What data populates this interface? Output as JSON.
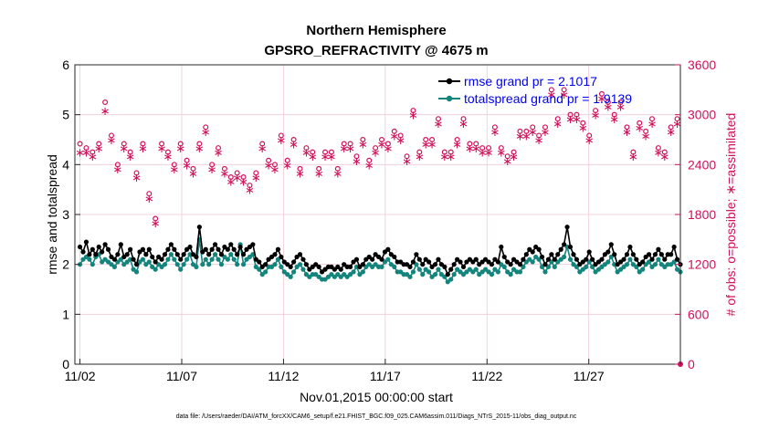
{
  "chart_data": {
    "type": "line",
    "title": "Northern Hemisphere",
    "subtitle": "GPSRO_REFRACTIVITY @ 4675 m",
    "xlabel": "Nov.01,2015 00:00:00 start",
    "ylabel": "rmse and totalspread",
    "ylabel_right": "# of obs: o=possible; ∗=assimilated",
    "x_tick_labels": [
      "11/02",
      "11/07",
      "11/12",
      "11/17",
      "11/22",
      "11/27"
    ],
    "x_tick_days": [
      1,
      6,
      11,
      16,
      21,
      26
    ],
    "xlim": [
      0.75,
      30.5
    ],
    "ylim": [
      0,
      6
    ],
    "y_ticks": [
      "0",
      "1",
      "2",
      "3",
      "4",
      "5",
      "6"
    ],
    "ylim_right": [
      0,
      3600
    ],
    "y_ticks_right": [
      "0",
      "600",
      "1200",
      "1800",
      "2400",
      "3000",
      "3600"
    ],
    "legend": [
      "rmse grand pr = 2.1017",
      "totalspread grand pr = 1.9139"
    ],
    "footer": "data file: /Users/raeder/DAI/ATM_forcXX/CAM6_setup/f.e21.FHIST_BGC.f09_025.CAM6assim.011/Diags_NTrS_2015-11/obs_diag_output.nc",
    "colors": {
      "rmse": "#000000",
      "spread": "#13857d",
      "obs": "#d0105a",
      "legend_text": "#0000ee"
    },
    "series": [
      {
        "name": "rmse",
        "values": [
          2.35,
          2.25,
          2.45,
          2.2,
          2.3,
          2.2,
          2.35,
          2.25,
          2.4,
          2.3,
          2.15,
          2.1,
          2.2,
          2.4,
          2.15,
          2.2,
          2.3,
          2.1,
          2.0,
          2.25,
          2.3,
          2.2,
          2.3,
          2.15,
          2.05,
          2.15,
          2.1,
          2.2,
          2.3,
          2.4,
          2.3,
          2.2,
          2.1,
          2.2,
          2.3,
          2.35,
          2.2,
          2.15,
          2.75,
          2.25,
          2.3,
          2.2,
          2.3,
          2.4,
          2.3,
          2.2,
          2.35,
          2.3,
          2.4,
          2.3,
          2.2,
          2.35,
          2.2,
          2.3,
          2.35,
          2.4,
          2.1,
          2.05,
          1.95,
          2.0,
          2.1,
          2.15,
          2.2,
          2.3,
          2.15,
          2.05,
          2.0,
          1.95,
          2.05,
          2.15,
          2.2,
          2.1,
          2.0,
          1.9,
          1.95,
          2.0,
          1.95,
          1.85,
          1.9,
          1.95,
          1.95,
          1.9,
          1.95,
          1.9,
          2.0,
          1.95,
          1.95,
          2.05,
          2.1,
          1.95,
          2.0,
          2.1,
          2.15,
          2.1,
          2.2,
          2.15,
          2.1,
          2.25,
          2.3,
          2.2,
          2.15,
          2.05,
          2.05,
          2.0,
          2.0,
          1.95,
          2.05,
          2.2,
          2.1,
          2.0,
          2.1,
          2.05,
          1.95,
          2.0,
          2.1,
          2.0,
          1.95,
          1.8,
          1.9,
          2.0,
          2.1,
          2.05,
          1.95,
          2.05,
          2.1,
          2.05,
          2.1,
          2.0,
          2.05,
          2.1,
          2.05,
          2.0,
          2.1,
          2.05,
          2.35,
          2.15,
          2.05,
          2.0,
          2.1,
          2.05,
          2.0,
          2.1,
          2.2,
          2.3,
          2.25,
          2.35,
          2.3,
          2.15,
          2.0,
          2.1,
          2.2,
          2.1,
          2.2,
          2.3,
          2.4,
          2.75,
          2.35,
          2.2,
          2.1,
          2.0,
          2.05,
          2.1,
          2.25,
          2.1,
          2.0,
          2.05,
          2.1,
          2.2,
          2.25,
          2.4,
          2.2,
          2.0,
          2.05,
          2.1,
          2.2,
          2.35,
          2.2,
          2.1,
          2.0,
          2.05,
          2.15,
          2.2,
          2.1,
          2.2,
          2.3,
          2.2,
          2.1,
          2.2,
          2.2,
          2.35,
          2.1,
          2.0
        ]
      },
      {
        "name": "totalspread",
        "values": [
          2.0,
          2.1,
          2.15,
          2.1,
          2.0,
          2.15,
          2.2,
          2.05,
          2.1,
          2.05,
          2.0,
          1.95,
          2.05,
          2.1,
          2.0,
          2.05,
          2.1,
          1.9,
          1.85,
          2.05,
          2.1,
          2.0,
          2.05,
          1.95,
          1.9,
          2.0,
          1.95,
          2.0,
          2.1,
          2.2,
          2.1,
          2.0,
          1.9,
          2.0,
          2.1,
          2.2,
          2.0,
          1.95,
          2.5,
          2.0,
          2.1,
          2.0,
          2.1,
          2.2,
          2.1,
          2.0,
          2.15,
          2.1,
          2.2,
          2.1,
          2.0,
          2.4,
          2.0,
          2.1,
          2.15,
          2.2,
          1.95,
          1.9,
          1.8,
          1.85,
          1.95,
          1.95,
          2.0,
          2.1,
          1.95,
          1.85,
          1.8,
          1.75,
          1.85,
          1.95,
          2.0,
          1.9,
          1.8,
          1.75,
          1.8,
          1.8,
          1.75,
          1.7,
          1.7,
          1.75,
          1.8,
          1.75,
          1.8,
          1.75,
          1.8,
          1.75,
          1.8,
          1.85,
          1.95,
          1.8,
          1.85,
          1.95,
          2.0,
          1.95,
          2.0,
          1.95,
          1.95,
          2.05,
          2.1,
          2.0,
          1.95,
          1.85,
          1.85,
          1.8,
          1.8,
          1.75,
          1.85,
          2.0,
          1.9,
          1.8,
          1.9,
          1.85,
          1.75,
          1.8,
          1.9,
          1.8,
          1.75,
          1.65,
          1.7,
          1.8,
          1.9,
          1.85,
          1.8,
          1.85,
          1.9,
          1.85,
          1.9,
          1.8,
          1.85,
          1.9,
          1.85,
          1.8,
          1.9,
          1.85,
          2.0,
          1.95,
          1.85,
          1.8,
          1.9,
          1.85,
          1.85,
          1.95,
          2.05,
          2.1,
          2.05,
          2.15,
          2.1,
          1.95,
          1.85,
          1.95,
          2.05,
          1.95,
          2.05,
          2.1,
          2.15,
          2.35,
          2.1,
          2.0,
          1.95,
          1.85,
          1.9,
          1.95,
          2.05,
          1.95,
          1.85,
          1.9,
          1.95,
          2.0,
          2.05,
          2.15,
          2.0,
          1.85,
          1.9,
          1.95,
          2.0,
          2.1,
          2.0,
          1.95,
          1.85,
          1.9,
          2.0,
          2.05,
          1.95,
          2.0,
          2.1,
          2.0,
          1.95,
          2.0,
          2.0,
          2.05,
          1.9,
          1.85
        ]
      },
      {
        "name": "possible",
        "values": [
          2650,
          2700,
          2600,
          2700,
          2550,
          2900,
          2650,
          2750,
          3150,
          2600,
          2750,
          2650,
          2400,
          2700,
          2650,
          2950,
          2550,
          2750,
          2300,
          2450,
          2650,
          2550,
          2050,
          1800,
          1750,
          2250,
          2650,
          2650,
          2550,
          2800,
          2400,
          2500,
          2650,
          2500,
          2450,
          2550,
          2350,
          2300,
          2650,
          2350,
          2850,
          2350,
          2400,
          2650,
          2600,
          2950,
          2350,
          2400,
          2250,
          1550,
          2300,
          2300,
          2250,
          2550,
          2150,
          2250,
          2300,
          2400,
          2650,
          2250,
          2450,
          2300,
          2400,
          2650,
          2750,
          2650,
          2450,
          2350,
          2700,
          2750,
          2350,
          2400,
          2600,
          2450,
          2550,
          2450,
          2350,
          2650,
          2550,
          2700,
          2550,
          2800,
          2350,
          2450,
          2650,
          2600,
          2650,
          2700,
          2500,
          2800,
          2700,
          2600,
          2450,
          2650,
          2600,
          2600,
          2700,
          2550,
          2650,
          2850,
          2800,
          2650,
          2750,
          2550,
          2500,
          2900,
          3050,
          2650,
          2550,
          2600,
          2700,
          2950,
          2700,
          2800,
          2950,
          2900,
          2550,
          2650,
          2550,
          2700,
          2700,
          2850,
          2950,
          2750,
          2650,
          2600,
          2650,
          2850,
          2600,
          2550,
          2600,
          2650,
          2850,
          2750,
          2600,
          2450,
          2500,
          2600,
          2550,
          2700,
          2800,
          2650,
          2800,
          2850,
          2850,
          3000,
          2750,
          3050,
          2850,
          3050,
          3300,
          3100,
          2950,
          3100,
          3300,
          2900,
          3000,
          3150,
          3000,
          2850,
          2900,
          2700,
          2750,
          3150,
          3050,
          2950,
          3250,
          3050,
          3150,
          2900,
          3000,
          3300,
          3150,
          3100,
          2850,
          2600,
          2550,
          2750,
          2900,
          2650,
          2800,
          2600,
          2950,
          2700,
          2600,
          2700,
          2550,
          2650,
          2850,
          2600,
          2950,
          2750,
          2700,
          2950
        ]
      },
      {
        "name": "assimilated",
        "values": [
          2550,
          2650,
          2550,
          2650,
          2500,
          2850,
          2600,
          2700,
          3050,
          2550,
          2700,
          2600,
          2350,
          2650,
          2600,
          2900,
          2500,
          2700,
          2250,
          2400,
          2600,
          2500,
          2000,
          1750,
          1700,
          2200,
          2600,
          2600,
          2500,
          2750,
          2350,
          2450,
          2600,
          2450,
          2400,
          2500,
          2300,
          2250,
          2600,
          2300,
          2800,
          2300,
          2350,
          2600,
          2550,
          2900,
          2300,
          2350,
          2200,
          1500,
          2250,
          2250,
          2200,
          2500,
          2100,
          2200,
          2250,
          2350,
          2600,
          2200,
          2400,
          2250,
          2350,
          2600,
          2700,
          2600,
          2400,
          2300,
          2650,
          2700,
          2300,
          2350,
          2550,
          2400,
          2500,
          2400,
          2300,
          2600,
          2500,
          2650,
          2500,
          2750,
          2300,
          2400,
          2600,
          2550,
          2600,
          2650,
          2450,
          2750,
          2650,
          2550,
          2400,
          2600,
          2550,
          2550,
          2650,
          2500,
          2600,
          2800,
          2750,
          2600,
          2700,
          2500,
          2450,
          2850,
          3000,
          2600,
          2500,
          2550,
          2650,
          2900,
          2650,
          2750,
          2900,
          2850,
          2500,
          2600,
          2500,
          2650,
          2650,
          2800,
          2900,
          2700,
          2600,
          2550,
          2600,
          2800,
          2550,
          2500,
          2550,
          2600,
          2800,
          2700,
          2550,
          2400,
          2450,
          2550,
          2500,
          2650,
          2750,
          2600,
          2750,
          2800,
          2800,
          2950,
          2700,
          3000,
          2800,
          3000,
          3250,
          3050,
          2900,
          3050,
          3250,
          2850,
          2950,
          3100,
          2950,
          2800,
          2850,
          2650,
          2700,
          3100,
          3000,
          2900,
          3200,
          3000,
          3100,
          2850,
          2950,
          3250,
          3100,
          3050,
          2800,
          2550,
          2500,
          2700,
          2850,
          2600,
          2750,
          2550,
          2900,
          2650,
          2550,
          2650,
          2500,
          2600,
          2800,
          2550,
          2900,
          2700,
          2650,
          2900
        ]
      }
    ]
  }
}
